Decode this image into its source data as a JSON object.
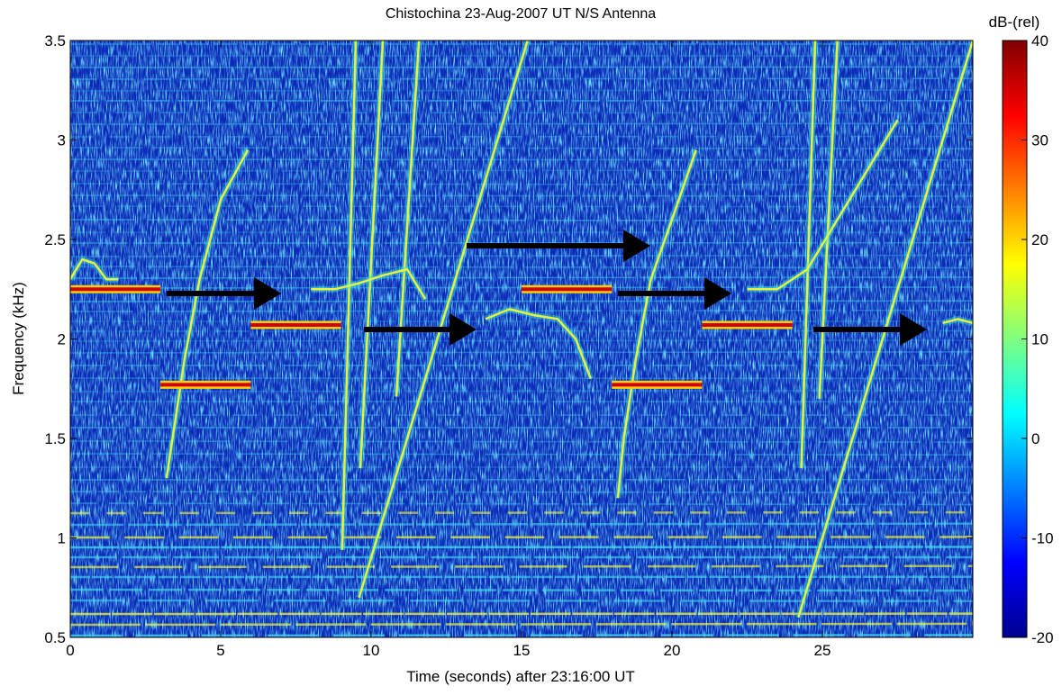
{
  "chart_data": {
    "type": "spectrogram",
    "title": "Chistochina 23-Aug-2007 UT   N/S Antenna",
    "xlabel": "Time (seconds) after 23:16:00 UT",
    "ylabel": "Frequency (kHz)",
    "xlim": [
      0,
      30
    ],
    "xticks": [
      0,
      5,
      10,
      15,
      20,
      25
    ],
    "ylim": [
      0.5,
      3.5
    ],
    "yticks": [
      0.5,
      1,
      1.5,
      2,
      2.5,
      3,
      3.5
    ],
    "colorbar": {
      "label": "dB-(rel)",
      "lim": [
        -20,
        40
      ],
      "ticks": [
        -20,
        -10,
        0,
        10,
        20,
        30,
        40
      ]
    },
    "tones": [
      {
        "x": [
          0,
          3
        ],
        "y": 2.25
      },
      {
        "x": [
          3,
          6
        ],
        "y": 1.77
      },
      {
        "x": [
          6,
          9
        ],
        "y": 2.07
      },
      {
        "x": [
          15,
          18
        ],
        "y": 2.25
      },
      {
        "x": [
          18,
          21
        ],
        "y": 1.77
      },
      {
        "x": [
          21,
          24
        ],
        "y": 2.07
      }
    ],
    "traces": [
      {
        "x": [
          9.6,
          15.2
        ],
        "y": [
          0.7,
          3.5
        ]
      },
      {
        "x": [
          24.2,
          30
        ],
        "y": [
          0.6,
          3.5
        ]
      },
      {
        "x": [
          9.04,
          9.49
        ],
        "y": [
          0.94,
          3.5
        ]
      },
      {
        "x": [
          9.64,
          10.39
        ],
        "y": [
          1.35,
          3.5
        ]
      },
      {
        "x": [
          10.84,
          11.59
        ],
        "y": [
          1.71,
          3.5
        ]
      },
      {
        "x": [
          24.3,
          24.76
        ],
        "y": [
          1.35,
          3.5
        ]
      },
      {
        "x": [
          24.9,
          25.5
        ],
        "y": [
          1.7,
          3.5
        ]
      },
      {
        "x": [
          5.9,
          5.0,
          4.3,
          3.8,
          3.4,
          3.2
        ],
        "y": [
          2.95,
          2.7,
          2.3,
          1.9,
          1.5,
          1.3
        ]
      },
      {
        "x": [
          20.8,
          20.0,
          19.3,
          18.8,
          18.4,
          18.2
        ],
        "y": [
          2.95,
          2.6,
          2.3,
          1.9,
          1.5,
          1.2
        ]
      },
      {
        "x": [
          0,
          0.4,
          0.8,
          1.2,
          1.6
        ],
        "y": [
          2.3,
          2.4,
          2.38,
          2.3,
          2.3
        ]
      },
      {
        "x": [
          8,
          8.8,
          9.6,
          10.4,
          11.2,
          11.8
        ],
        "y": [
          2.25,
          2.25,
          2.28,
          2.32,
          2.35,
          2.2
        ]
      },
      {
        "x": [
          13.8,
          14.6,
          15.4,
          16.2,
          16.8,
          17.3
        ],
        "y": [
          2.1,
          2.15,
          2.12,
          2.1,
          2.0,
          1.8
        ]
      },
      {
        "x": [
          22.5,
          23.5,
          24.5,
          25.5,
          26.5,
          27.5
        ],
        "y": [
          2.25,
          2.25,
          2.35,
          2.6,
          2.85,
          3.1
        ]
      },
      {
        "x": [
          29,
          29.5,
          30
        ],
        "y": [
          2.08,
          2.1,
          2.08
        ]
      }
    ]
  }
}
